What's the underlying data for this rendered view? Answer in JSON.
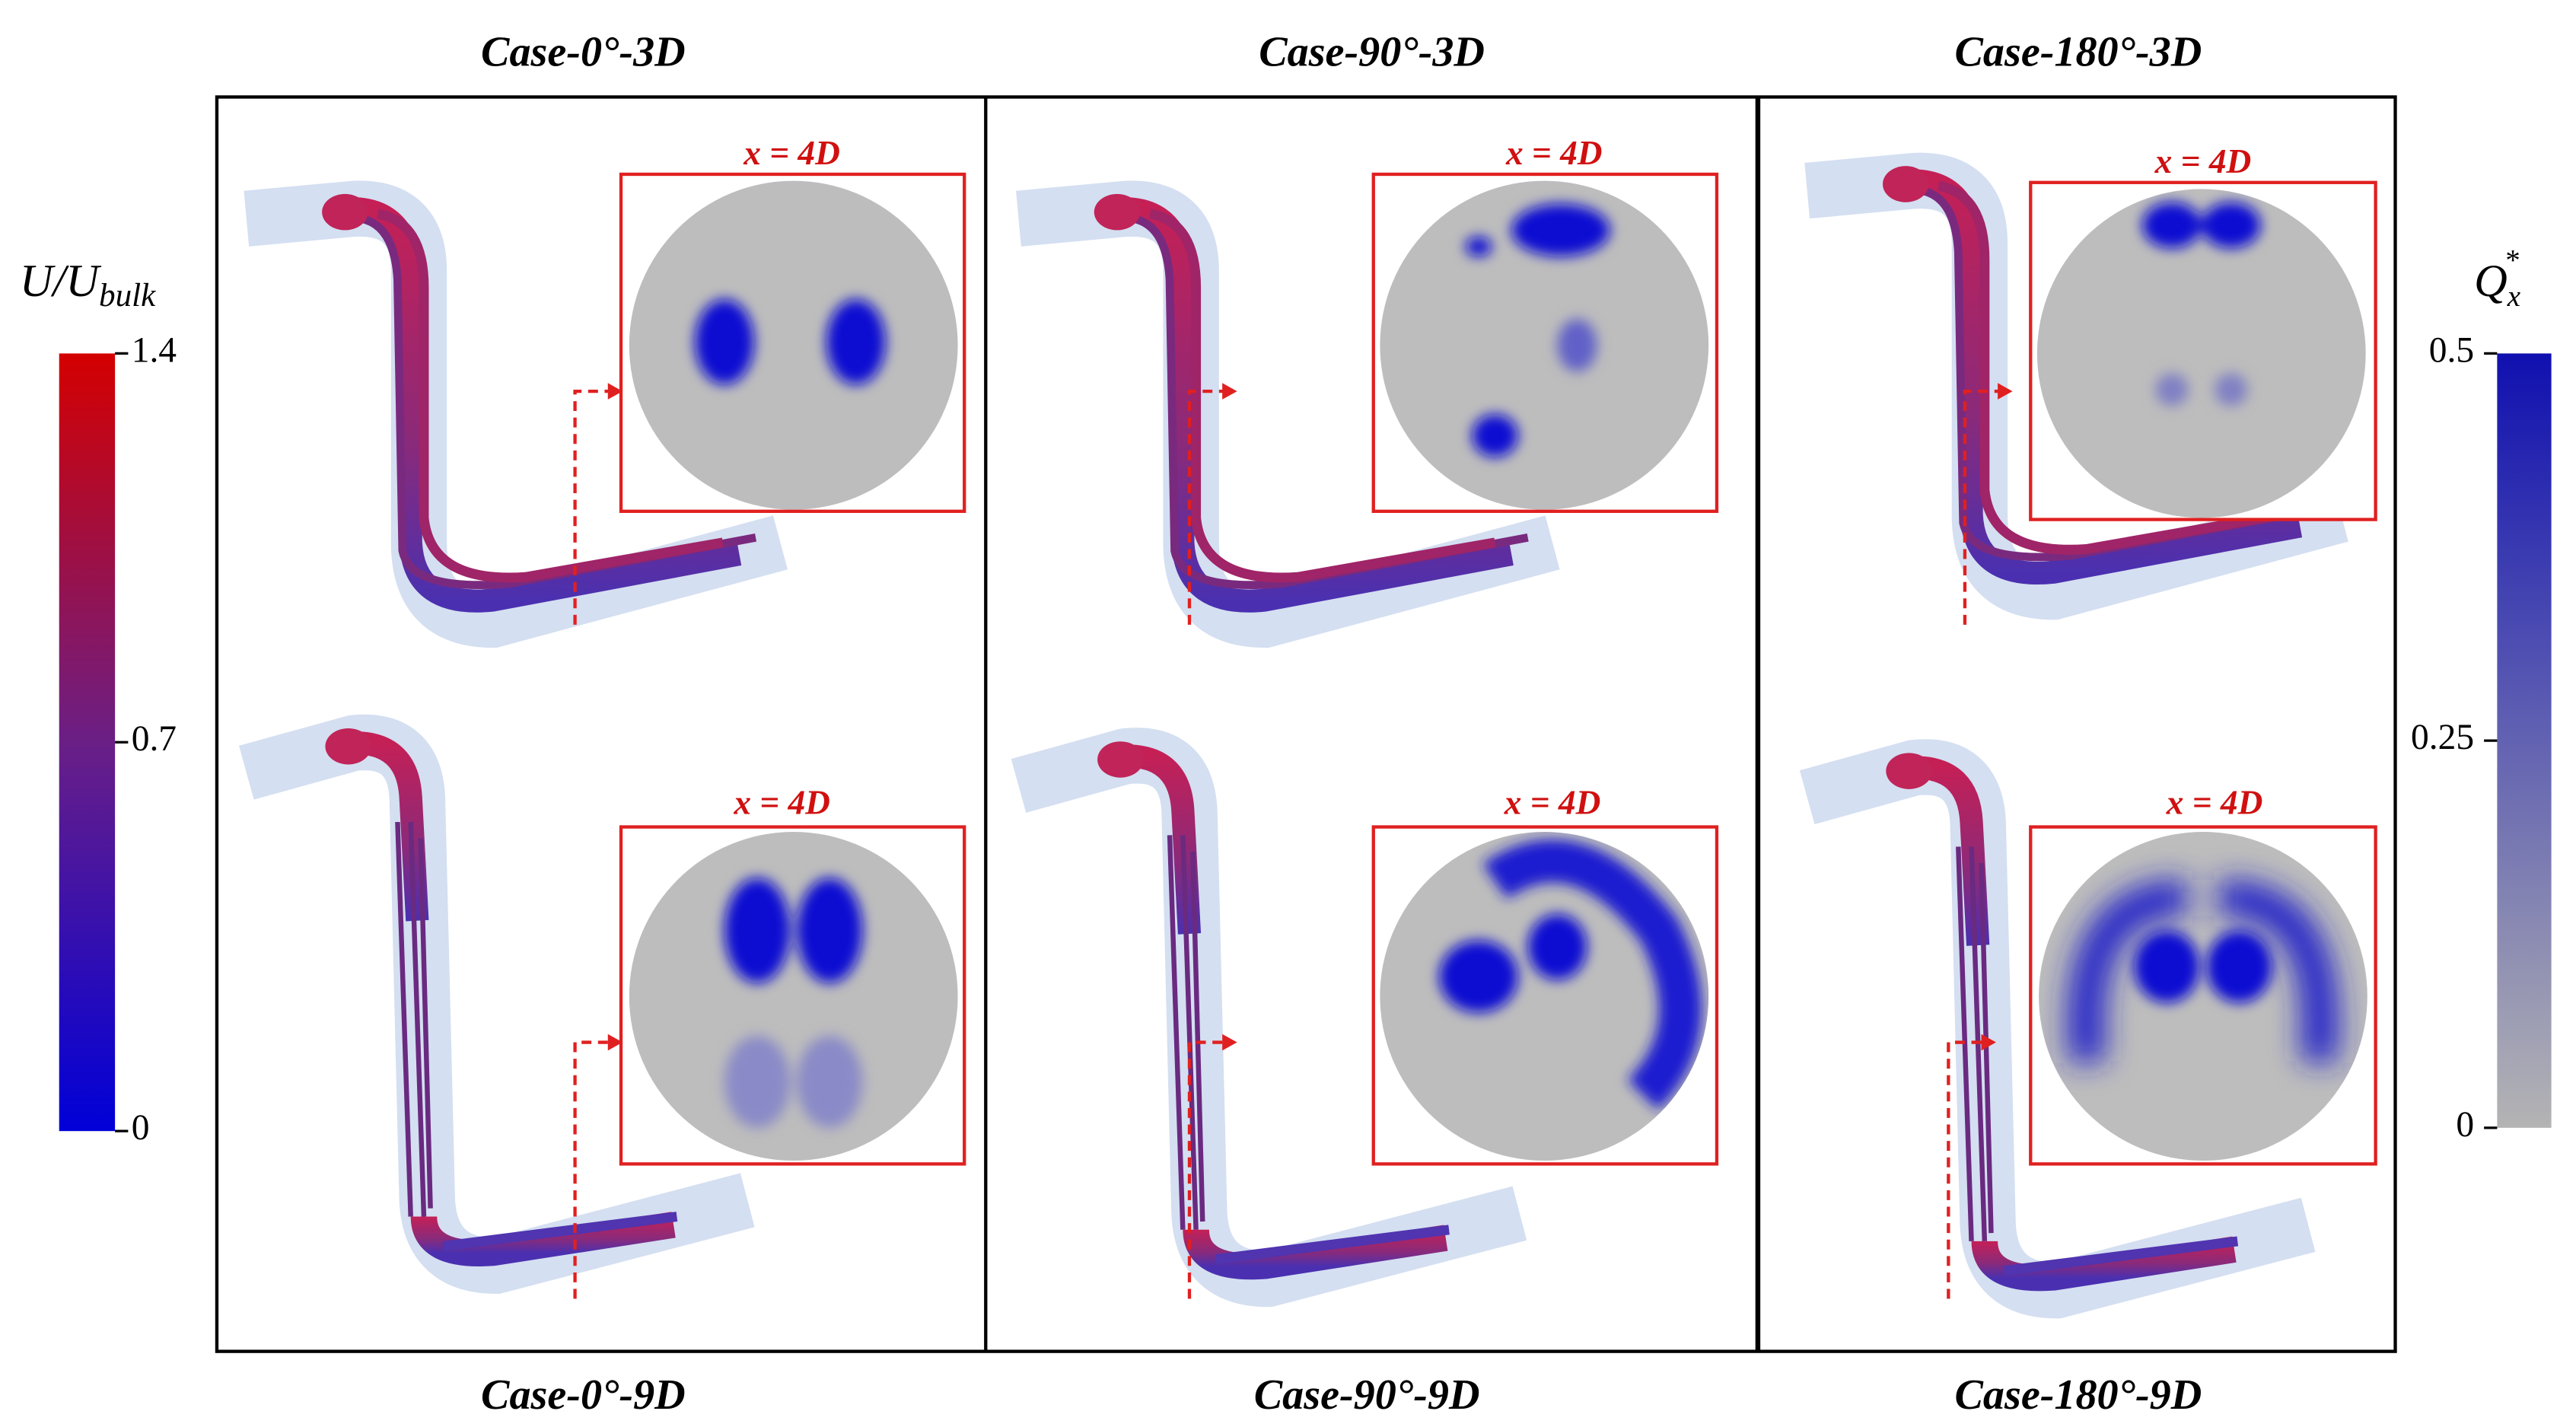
{
  "panels": [
    {
      "title": "Case-0°-3D",
      "inset_label": "x = 4D"
    },
    {
      "title": "Case-90°-3D",
      "inset_label": "x = 4D"
    },
    {
      "title": "Case-180°-3D",
      "inset_label": "x = 4D"
    },
    {
      "title": "Case-0°-9D",
      "inset_label": "x = 4D"
    },
    {
      "title": "Case-90°-9D",
      "inset_label": "x = 4D"
    },
    {
      "title": "Case-180°-9D",
      "inset_label": "x = 4D"
    }
  ],
  "colorbars": [
    {
      "label": "U/U",
      "label_sub": "bulk",
      "ticks": [
        0,
        0.7,
        1.4
      ]
    },
    {
      "label": "Q",
      "label_sub": "x",
      "label_sup": "*",
      "ticks": [
        0,
        0.25,
        0.5
      ]
    }
  ]
}
